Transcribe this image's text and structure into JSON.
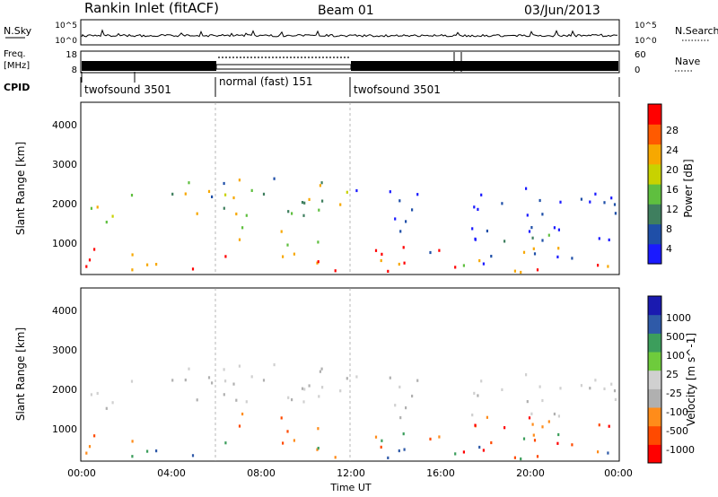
{
  "header": {
    "title": "Rankin Inlet (fitACF)",
    "beam": "Beam 01",
    "date": "03/Jun/2013"
  },
  "side_labels": {
    "nsky": "N.Sky",
    "nsearch": "N.Search",
    "freq": "Freq.",
    "freq_unit": "[MHz]",
    "nave": "Nave",
    "cpid": "CPID"
  },
  "noise_panel": {
    "ytick_top": "10^5",
    "ytick_bottom": "10^0"
  },
  "freq_panel": {
    "left_ticks": [
      "18",
      "8"
    ],
    "right_ticks": [
      "60",
      "0"
    ]
  },
  "cpid_segments": [
    {
      "label": "twofsound 3501",
      "start_hour": 0,
      "end_hour": 6
    },
    {
      "label": "normal (fast) 151",
      "start_hour": 6,
      "end_hour": 12
    },
    {
      "label": "twofsound 3501",
      "start_hour": 12,
      "end_hour": 24
    }
  ],
  "colors": {
    "power_scale": [
      "#1a1aff",
      "#1f4fa8",
      "#3f7f5f",
      "#5fbf3f",
      "#c8d200",
      "#f7a800",
      "#ff5a00",
      "#ff0000"
    ],
    "velocity_scale": [
      "#ff0000",
      "#ff4a00",
      "#ff8c1a",
      "#b0b0b0",
      "#d0d0d0",
      "#6ecb3c",
      "#3c9e5c",
      "#2f5aa8",
      "#1a1ab0"
    ],
    "text": "#000000"
  },
  "chart_data": [
    {
      "type": "heatmap",
      "title": "Power",
      "xlabel": "",
      "ylabel": "Slant Range [km]",
      "xlim": [
        0,
        24
      ],
      "ylim": [
        180,
        4500
      ],
      "yticks": [
        "1000",
        "2000",
        "3000",
        "4000"
      ],
      "colorbar": {
        "label": "Power [dB]",
        "range": [
          0,
          32
        ],
        "ticks": [
          "4",
          "8",
          "12",
          "16",
          "20",
          "24",
          "28"
        ]
      }
    },
    {
      "type": "heatmap",
      "title": "Velocity",
      "xlabel": "Time UT",
      "ylabel": "Slant Range [km]",
      "xlim": [
        0,
        24
      ],
      "ylim": [
        180,
        4500
      ],
      "xticks": [
        "00:00",
        "04:00",
        "08:00",
        "12:00",
        "16:00",
        "20:00",
        "00:00"
      ],
      "yticks": [
        "1000",
        "2000",
        "3000",
        "4000"
      ],
      "colorbar": {
        "label": "Velocity [m s^-1]",
        "ticks": [
          "1000",
          "500",
          "100",
          "25",
          "-25",
          "-100",
          "-500",
          "-1000"
        ]
      }
    }
  ]
}
